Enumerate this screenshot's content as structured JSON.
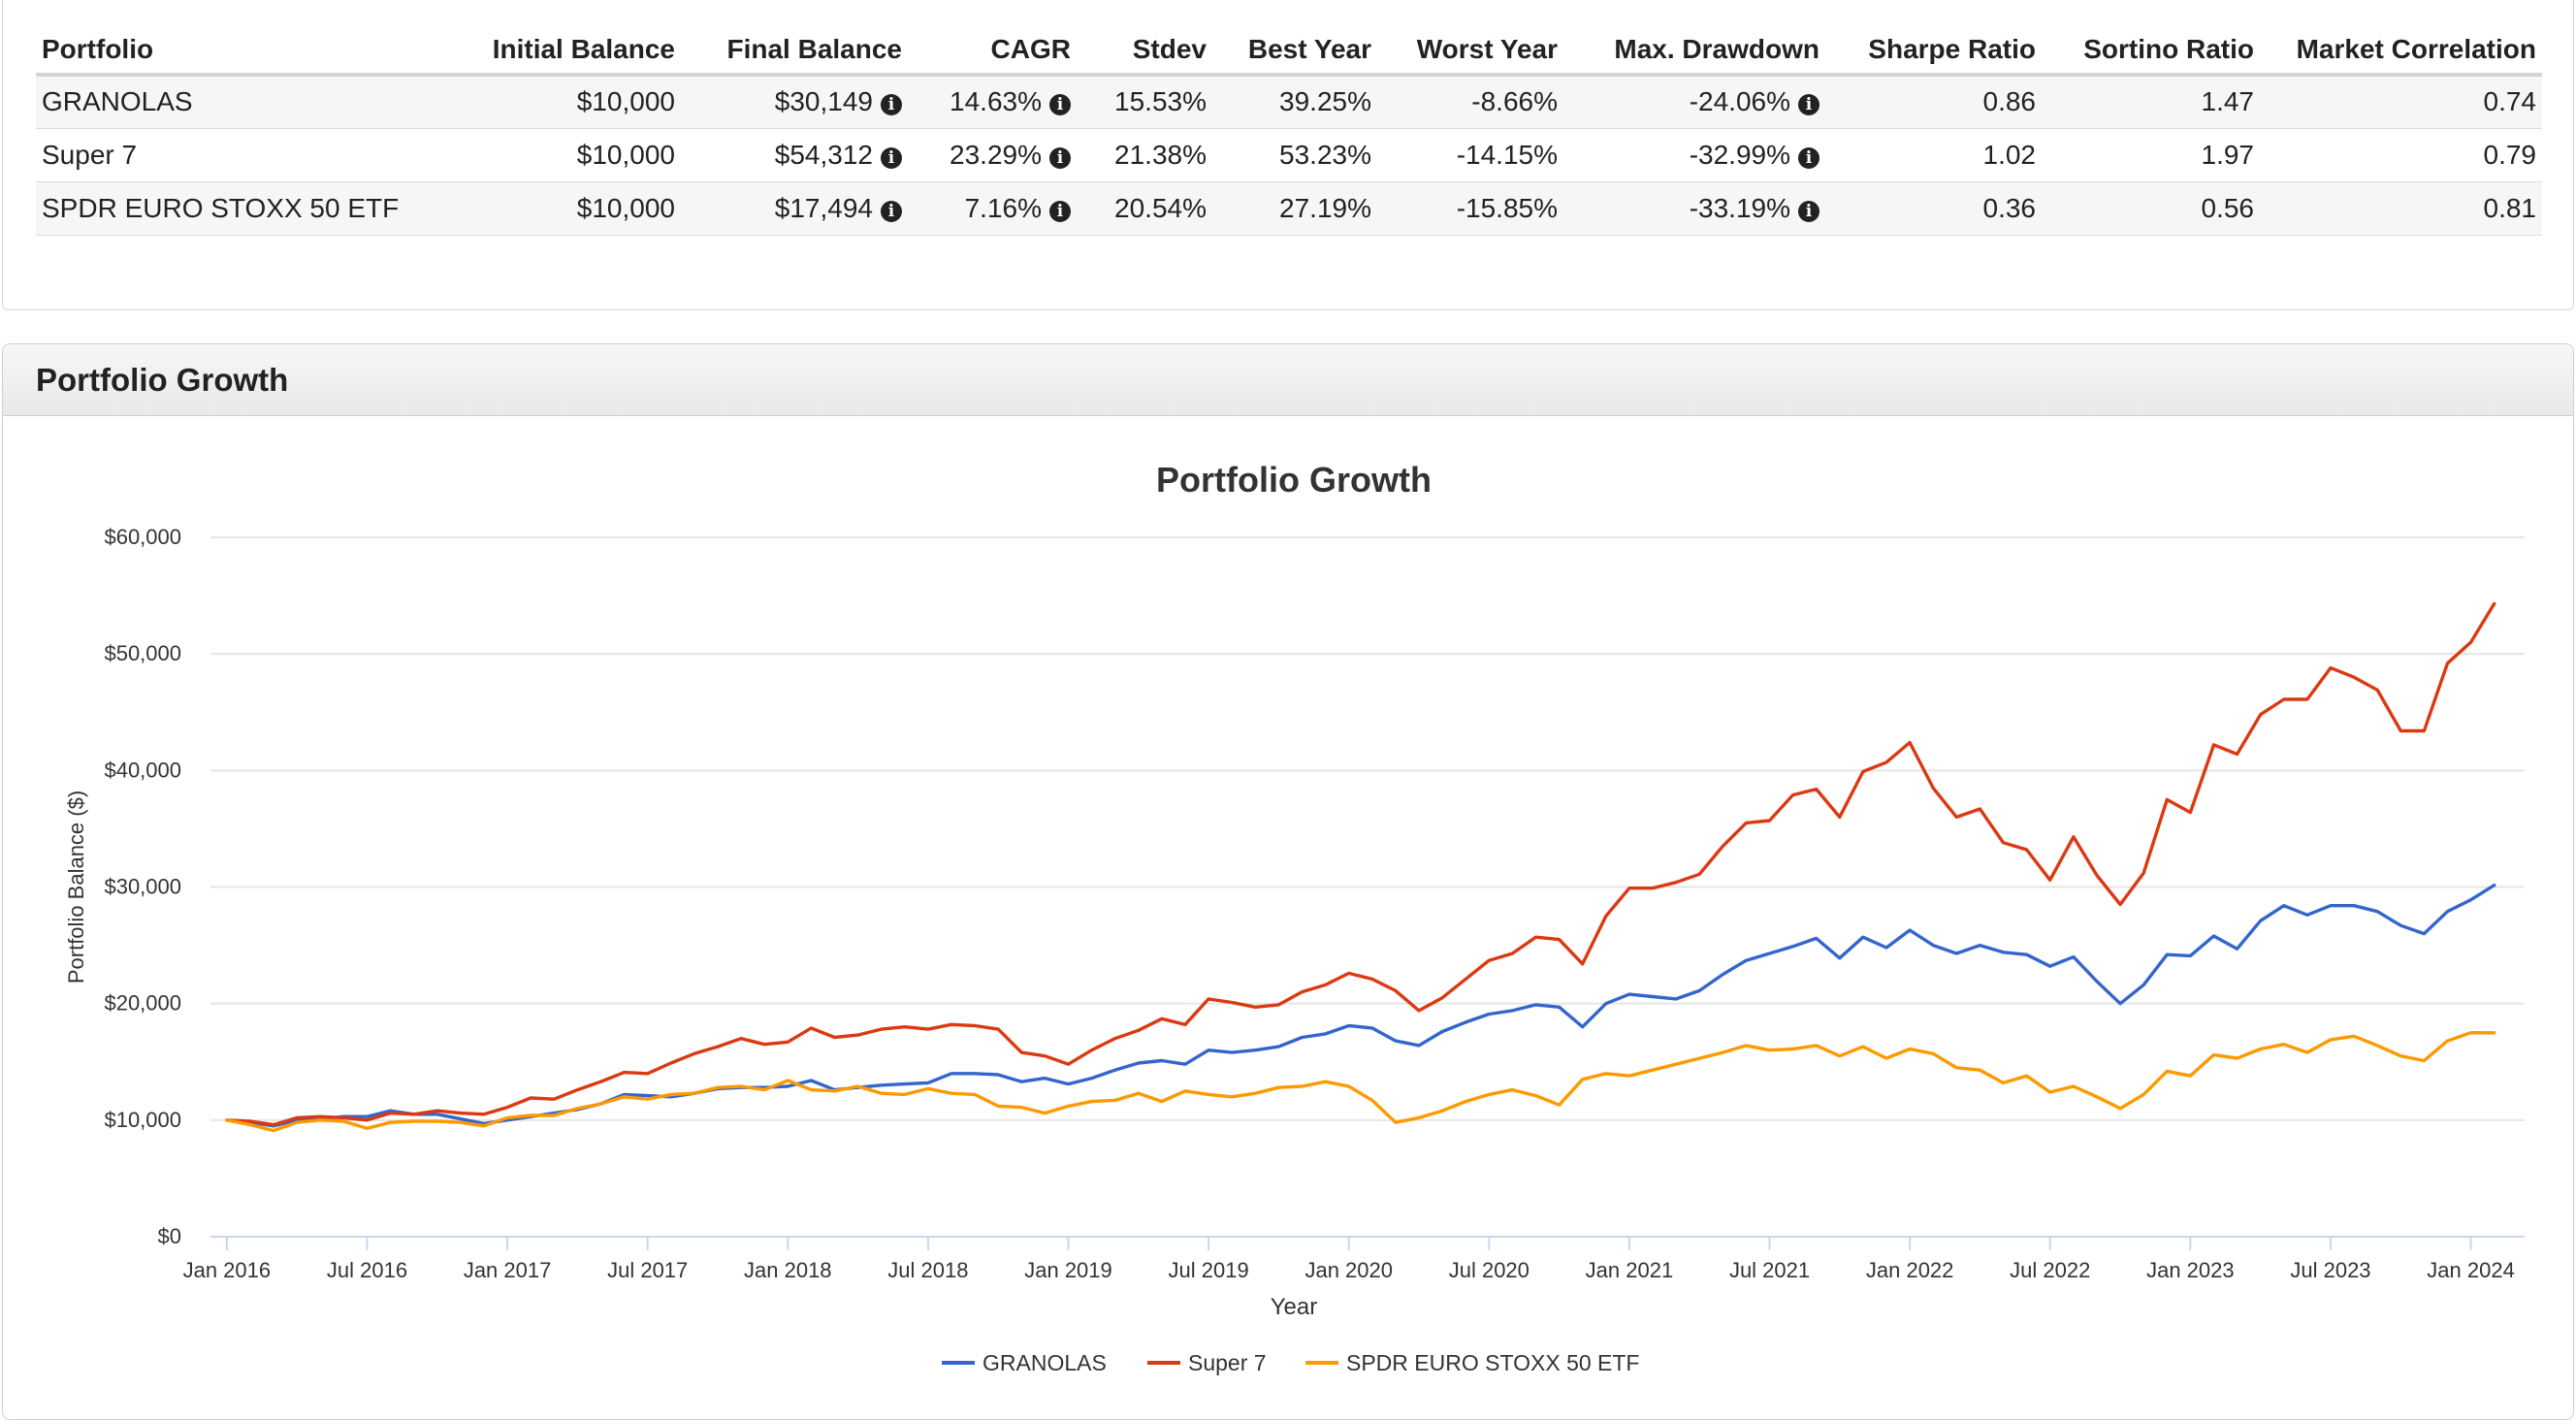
{
  "stats_table": {
    "headers": [
      "Portfolio",
      "Initial Balance",
      "Final Balance",
      "CAGR",
      "Stdev",
      "Best Year",
      "Worst Year",
      "Max. Drawdown",
      "Sharpe Ratio",
      "Sortino Ratio",
      "Market Correlation"
    ],
    "rows": [
      {
        "portfolio": "GRANOLAS",
        "initial": "$10,000",
        "final": "$30,149",
        "cagr": "14.63%",
        "stdev": "15.53%",
        "best": "39.25%",
        "worst": "-8.66%",
        "drawdown": "-24.06%",
        "sharpe": "0.86",
        "sortino": "1.47",
        "correlation": "0.74"
      },
      {
        "portfolio": "Super 7",
        "initial": "$10,000",
        "final": "$54,312",
        "cagr": "23.29%",
        "stdev": "21.38%",
        "best": "53.23%",
        "worst": "-14.15%",
        "drawdown": "-32.99%",
        "sharpe": "1.02",
        "sortino": "1.97",
        "correlation": "0.79"
      },
      {
        "portfolio": "SPDR EURO STOXX 50 ETF",
        "initial": "$10,000",
        "final": "$17,494",
        "cagr": "7.16%",
        "stdev": "20.54%",
        "best": "27.19%",
        "worst": "-15.85%",
        "drawdown": "-33.19%",
        "sharpe": "0.36",
        "sortino": "0.56",
        "correlation": "0.81"
      }
    ],
    "info_glyph": "i"
  },
  "growth_panel": {
    "header": "Portfolio Growth"
  },
  "colors": {
    "granolas": "#3366cc",
    "super7": "#dc3912",
    "spdr": "#ff9900",
    "grid": "#e6e6e6",
    "axis": "#ccd6eb"
  },
  "chart_data": {
    "type": "line",
    "title": "Portfolio Growth",
    "xlabel": "Year",
    "ylabel": "Portfolio Balance ($)",
    "ylim": [
      0,
      60000
    ],
    "yticks": [
      0,
      10000,
      20000,
      30000,
      40000,
      50000,
      60000
    ],
    "ytick_labels": [
      "$0",
      "$10,000",
      "$20,000",
      "$30,000",
      "$40,000",
      "$50,000",
      "$60,000"
    ],
    "xlim_months": [
      -0.7,
      98.3
    ],
    "xticks_months": [
      0,
      6,
      12,
      18,
      24,
      30,
      36,
      42,
      48,
      54,
      60,
      66,
      72,
      78,
      84,
      90,
      96
    ],
    "xtick_labels": [
      "Jan 2016",
      "Jul 2016",
      "Jan 2017",
      "Jul 2017",
      "Jan 2018",
      "Jul 2018",
      "Jan 2019",
      "Jul 2019",
      "Jan 2020",
      "Jul 2020",
      "Jan 2021",
      "Jul 2021",
      "Jan 2022",
      "Jul 2022",
      "Jan 2023",
      "Jul 2023",
      "Jan 2024"
    ],
    "x_note": "values are monthly, index 0 = Jan 2016",
    "legend_position": "bottom-center",
    "series": [
      {
        "name": "GRANOLAS",
        "color_key": "granolas",
        "values": [
          10000,
          9800,
          9500,
          10000,
          10100,
          10300,
          10300,
          10800,
          10500,
          10500,
          10100,
          9700,
          10000,
          10300,
          10600,
          10900,
          11400,
          12200,
          12100,
          12000,
          12300,
          12700,
          12800,
          12800,
          12900,
          13400,
          12600,
          12800,
          13000,
          13100,
          13200,
          14000,
          14000,
          13900,
          13300,
          13600,
          13100,
          13600,
          14300,
          14900,
          15100,
          14800,
          16000,
          15800,
          16000,
          16300,
          17100,
          17400,
          18100,
          17900,
          16800,
          16400,
          17600,
          18400,
          19100,
          19400,
          19900,
          19700,
          18000,
          20000,
          20800,
          20600,
          20400,
          21100,
          22500,
          23700,
          24300,
          24900,
          25600,
          23900,
          25700,
          24800,
          26300,
          25000,
          24300,
          25000,
          24400,
          24200,
          23200,
          24000,
          21900,
          20000,
          21600,
          24200,
          24100,
          25800,
          24700,
          27100,
          28400,
          27600,
          28400,
          28400,
          27900,
          26700,
          26000,
          27900,
          28900,
          30149
        ]
      },
      {
        "name": "Super 7",
        "color_key": "super7",
        "values": [
          10000,
          9900,
          9600,
          10200,
          10300,
          10200,
          10000,
          10600,
          10500,
          10800,
          10600,
          10500,
          11100,
          11900,
          11800,
          12600,
          13300,
          14100,
          14000,
          14900,
          15700,
          16300,
          17000,
          16500,
          16700,
          17900,
          17100,
          17300,
          17800,
          18000,
          17800,
          18200,
          18100,
          17800,
          15800,
          15500,
          14800,
          16000,
          17000,
          17700,
          18700,
          18200,
          20400,
          20100,
          19700,
          19900,
          21000,
          21600,
          22600,
          22100,
          21100,
          19400,
          20500,
          22100,
          23700,
          24300,
          25700,
          25500,
          23400,
          27500,
          29900,
          29900,
          30400,
          31100,
          33500,
          35500,
          35700,
          37900,
          38400,
          36000,
          39900,
          40700,
          42400,
          38500,
          36000,
          36700,
          33800,
          33200,
          30600,
          34300,
          31000,
          28500,
          31200,
          37500,
          36400,
          42200,
          41400,
          44800,
          46100,
          46100,
          48800,
          48000,
          46900,
          43400,
          43400,
          49200,
          51000,
          54312
        ]
      },
      {
        "name": "SPDR EURO STOXX 50 ETF",
        "color_key": "spdr",
        "values": [
          10000,
          9600,
          9100,
          9800,
          10000,
          9900,
          9300,
          9800,
          9900,
          9900,
          9800,
          9500,
          10200,
          10400,
          10400,
          11000,
          11400,
          12000,
          11800,
          12200,
          12300,
          12800,
          12900,
          12600,
          13400,
          12600,
          12500,
          12900,
          12300,
          12200,
          12700,
          12300,
          12200,
          11200,
          11100,
          10600,
          11200,
          11600,
          11700,
          12300,
          11600,
          12500,
          12200,
          12000,
          12300,
          12800,
          12900,
          13300,
          12900,
          11700,
          9800,
          10200,
          10800,
          11600,
          12200,
          12600,
          12100,
          11300,
          13500,
          14000,
          13800,
          14300,
          14800,
          15300,
          15800,
          16400,
          16000,
          16100,
          16400,
          15500,
          16300,
          15300,
          16100,
          15700,
          14500,
          14300,
          13200,
          13800,
          12400,
          12900,
          12000,
          11000,
          12200,
          14200,
          13800,
          15600,
          15300,
          16100,
          16500,
          15800,
          16900,
          17200,
          16400,
          15500,
          15100,
          16800,
          17500,
          17494
        ]
      }
    ]
  }
}
